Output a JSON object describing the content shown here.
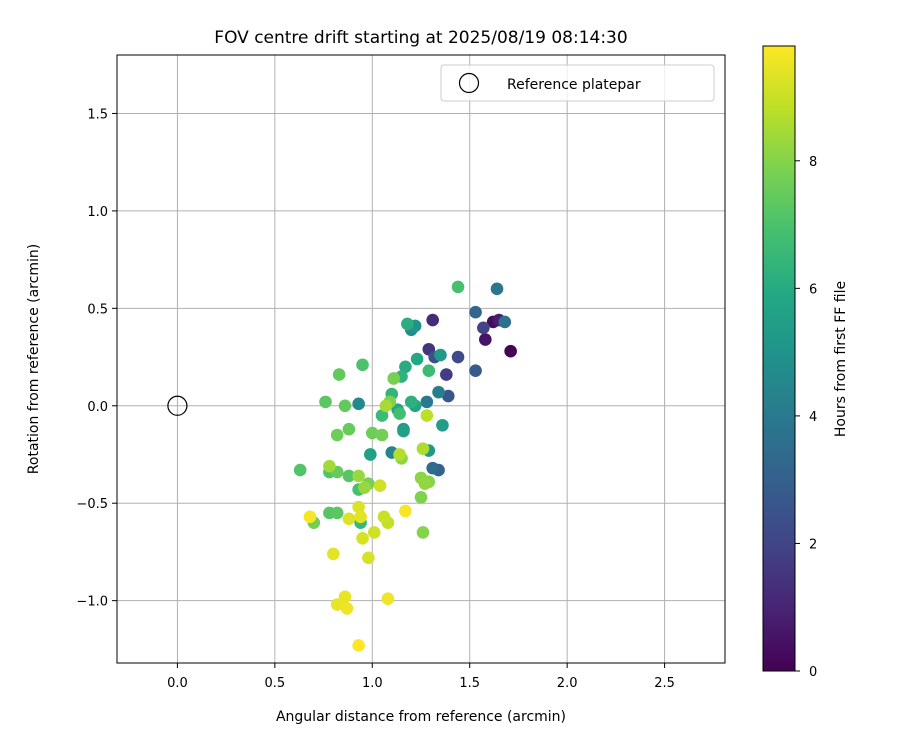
{
  "chart_data": {
    "type": "scatter",
    "title": "FOV centre drift starting at 2025/08/19 08:14:30",
    "xlabel": "Angular distance from reference (arcmin)",
    "ylabel": "Rotation from reference (arcmin)",
    "xlim": [
      -0.31,
      2.81
    ],
    "ylim": [
      -1.32,
      1.8
    ],
    "xticks": [
      0.0,
      0.5,
      1.0,
      1.5,
      2.0,
      2.5
    ],
    "yticks": [
      -1.0,
      -0.5,
      0.0,
      0.5,
      1.0,
      1.5
    ],
    "xtick_labels": [
      "0.0",
      "0.5",
      "1.0",
      "1.5",
      "2.0",
      "2.5"
    ],
    "ytick_labels": [
      "−1.0",
      "−0.5",
      "0.0",
      "0.5",
      "1.0",
      "1.5"
    ],
    "grid": true,
    "legend": {
      "location": "upper right",
      "entries": [
        "Reference platepar"
      ]
    },
    "reference_point": {
      "x": 0.0,
      "y": 0.0,
      "marker": "open circle"
    },
    "colorbar": {
      "label": "Hours from first FF file",
      "min": 0,
      "max": 9.8,
      "colormap": "viridis",
      "ticks": [
        0,
        2,
        4,
        6,
        8
      ],
      "tick_labels": [
        "0",
        "2",
        "4",
        "6",
        "8"
      ]
    },
    "points": [
      {
        "x": 1.71,
        "y": 0.28,
        "c": 0.1
      },
      {
        "x": 1.62,
        "y": 0.43,
        "c": 0.3
      },
      {
        "x": 1.58,
        "y": 0.34,
        "c": 0.5
      },
      {
        "x": 1.65,
        "y": 0.44,
        "c": 0.8
      },
      {
        "x": 1.31,
        "y": 0.44,
        "c": 1.2
      },
      {
        "x": 1.29,
        "y": 0.29,
        "c": 1.5
      },
      {
        "x": 1.38,
        "y": 0.16,
        "c": 1.7
      },
      {
        "x": 1.57,
        "y": 0.4,
        "c": 2.0
      },
      {
        "x": 1.44,
        "y": 0.25,
        "c": 2.2
      },
      {
        "x": 1.32,
        "y": 0.25,
        "c": 2.4
      },
      {
        "x": 1.39,
        "y": 0.05,
        "c": 2.6
      },
      {
        "x": 1.53,
        "y": 0.18,
        "c": 2.8
      },
      {
        "x": 1.34,
        "y": -0.33,
        "c": 3.0
      },
      {
        "x": 1.53,
        "y": 0.48,
        "c": 3.2
      },
      {
        "x": 1.31,
        "y": -0.32,
        "c": 3.4
      },
      {
        "x": 1.68,
        "y": 0.43,
        "c": 3.6
      },
      {
        "x": 1.64,
        "y": 0.6,
        "c": 3.8
      },
      {
        "x": 1.28,
        "y": 0.02,
        "c": 4.0
      },
      {
        "x": 1.34,
        "y": 0.07,
        "c": 4.2
      },
      {
        "x": 1.1,
        "y": -0.24,
        "c": 4.4
      },
      {
        "x": 0.93,
        "y": 0.01,
        "c": 4.6
      },
      {
        "x": 1.2,
        "y": 0.39,
        "c": 4.8
      },
      {
        "x": 1.22,
        "y": 0.41,
        "c": 5.0
      },
      {
        "x": 1.16,
        "y": -0.12,
        "c": 5.1
      },
      {
        "x": 1.29,
        "y": -0.23,
        "c": 5.2
      },
      {
        "x": 1.35,
        "y": 0.26,
        "c": 5.3
      },
      {
        "x": 1.36,
        "y": -0.1,
        "c": 5.4
      },
      {
        "x": 1.16,
        "y": -0.13,
        "c": 5.5
      },
      {
        "x": 0.99,
        "y": -0.25,
        "c": 5.6
      },
      {
        "x": 1.22,
        "y": 0.0,
        "c": 5.7
      },
      {
        "x": 1.13,
        "y": -0.02,
        "c": 5.8
      },
      {
        "x": 1.23,
        "y": 0.24,
        "c": 5.9
      },
      {
        "x": 1.17,
        "y": 0.2,
        "c": 6.0
      },
      {
        "x": 1.18,
        "y": 0.42,
        "c": 6.1
      },
      {
        "x": 1.2,
        "y": 0.02,
        "c": 6.2
      },
      {
        "x": 1.15,
        "y": 0.15,
        "c": 6.3
      },
      {
        "x": 1.1,
        "y": 0.06,
        "c": 6.4
      },
      {
        "x": 0.94,
        "y": -0.6,
        "c": 6.5
      },
      {
        "x": 1.05,
        "y": -0.05,
        "c": 6.6
      },
      {
        "x": 1.29,
        "y": 0.18,
        "c": 6.7
      },
      {
        "x": 1.14,
        "y": -0.04,
        "c": 6.8
      },
      {
        "x": 1.44,
        "y": 0.61,
        "c": 6.9
      },
      {
        "x": 0.93,
        "y": -0.43,
        "c": 6.9
      },
      {
        "x": 0.95,
        "y": 0.21,
        "c": 7.0
      },
      {
        "x": 0.63,
        "y": -0.33,
        "c": 7.1
      },
      {
        "x": 0.78,
        "y": -0.34,
        "c": 7.1
      },
      {
        "x": 0.88,
        "y": -0.36,
        "c": 7.2
      },
      {
        "x": 0.78,
        "y": -0.55,
        "c": 7.2
      },
      {
        "x": 0.82,
        "y": -0.55,
        "c": 7.3
      },
      {
        "x": 0.76,
        "y": 0.02,
        "c": 7.3
      },
      {
        "x": 0.86,
        "y": 0.0,
        "c": 7.4
      },
      {
        "x": 0.83,
        "y": 0.16,
        "c": 7.4
      },
      {
        "x": 0.82,
        "y": -0.34,
        "c": 7.5
      },
      {
        "x": 0.88,
        "y": -0.12,
        "c": 7.5
      },
      {
        "x": 0.82,
        "y": -0.15,
        "c": 7.6
      },
      {
        "x": 1.0,
        "y": -0.14,
        "c": 7.6
      },
      {
        "x": 1.05,
        "y": -0.15,
        "c": 7.7
      },
      {
        "x": 0.7,
        "y": -0.6,
        "c": 7.7
      },
      {
        "x": 0.98,
        "y": -0.4,
        "c": 7.8
      },
      {
        "x": 1.11,
        "y": 0.14,
        "c": 7.8
      },
      {
        "x": 1.09,
        "y": 0.02,
        "c": 7.9
      },
      {
        "x": 1.25,
        "y": -0.47,
        "c": 7.9
      },
      {
        "x": 1.26,
        "y": -0.65,
        "c": 8.0
      },
      {
        "x": 1.29,
        "y": -0.39,
        "c": 8.0
      },
      {
        "x": 1.25,
        "y": -0.37,
        "c": 8.1
      },
      {
        "x": 1.15,
        "y": -0.27,
        "c": 8.1
      },
      {
        "x": 1.27,
        "y": -0.4,
        "c": 8.2
      },
      {
        "x": 0.93,
        "y": -0.36,
        "c": 8.3
      },
      {
        "x": 0.96,
        "y": -0.42,
        "c": 8.3
      },
      {
        "x": 0.78,
        "y": -0.31,
        "c": 8.4
      },
      {
        "x": 1.07,
        "y": 0.0,
        "c": 8.5
      },
      {
        "x": 1.26,
        "y": -0.22,
        "c": 8.6
      },
      {
        "x": 1.14,
        "y": -0.25,
        "c": 8.7
      },
      {
        "x": 1.28,
        "y": -0.05,
        "c": 8.8
      },
      {
        "x": 1.08,
        "y": -0.6,
        "c": 8.9
      },
      {
        "x": 1.06,
        "y": -0.57,
        "c": 9.0
      },
      {
        "x": 1.04,
        "y": -0.41,
        "c": 9.1
      },
      {
        "x": 1.01,
        "y": -0.65,
        "c": 9.1
      },
      {
        "x": 0.95,
        "y": -0.68,
        "c": 9.2
      },
      {
        "x": 0.98,
        "y": -0.78,
        "c": 9.2
      },
      {
        "x": 0.88,
        "y": -0.58,
        "c": 9.3
      },
      {
        "x": 0.93,
        "y": -0.52,
        "c": 9.3
      },
      {
        "x": 0.94,
        "y": -0.57,
        "c": 9.4
      },
      {
        "x": 0.8,
        "y": -0.76,
        "c": 9.4
      },
      {
        "x": 0.86,
        "y": -0.98,
        "c": 9.5
      },
      {
        "x": 0.82,
        "y": -1.02,
        "c": 9.5
      },
      {
        "x": 0.87,
        "y": -1.04,
        "c": 9.6
      },
      {
        "x": 1.08,
        "y": -0.99,
        "c": 9.6
      },
      {
        "x": 0.68,
        "y": -0.57,
        "c": 9.7
      },
      {
        "x": 1.17,
        "y": -0.54,
        "c": 9.7
      },
      {
        "x": 0.93,
        "y": -1.23,
        "c": 9.8
      }
    ]
  }
}
